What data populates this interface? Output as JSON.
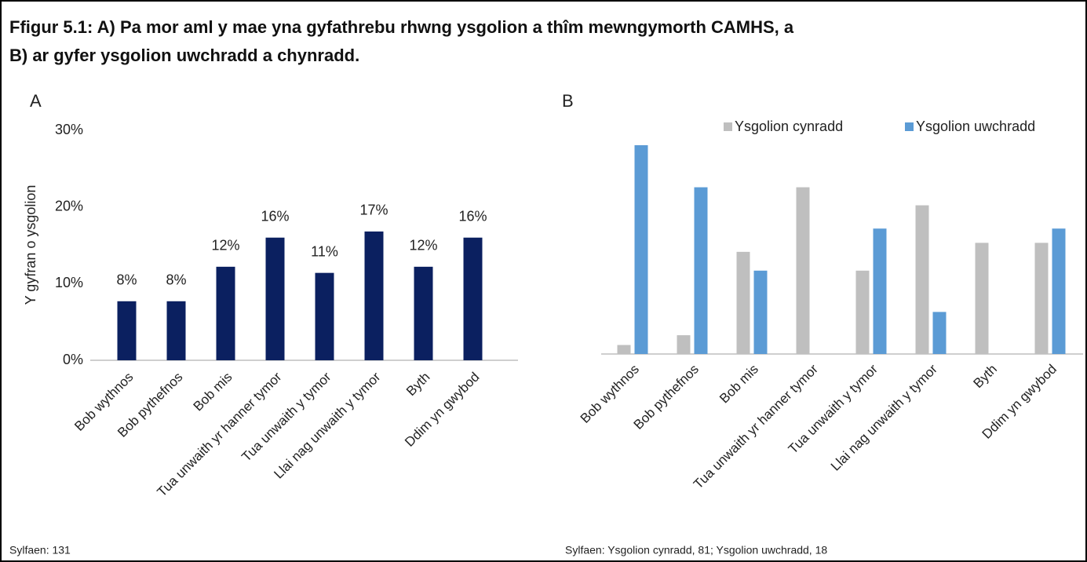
{
  "title": "Ffigur 5.1: A) Pa mor aml y mae yna gyfathrebu rhwng ysgolion a thîm mewngymorth CAMHS, a B) ar gyfer ysgolion uwchradd a chynradd.",
  "chart_data": [
    {
      "type": "bar",
      "panel": "A",
      "ylabel": "Y gyfran o ysgolion",
      "categories": [
        "Bob wythnos",
        "Bob pythefnos",
        "Bob mis",
        "Tua unwaith yr hanner tymor",
        "Tua unwaith y tymor",
        "Llai nag unwaith y tymor",
        "Byth",
        "Ddim yn gwybod"
      ],
      "values": [
        7.7,
        7.7,
        12.2,
        16,
        11.4,
        16.8,
        12.2,
        16
      ],
      "value_labels": [
        "8%",
        "8%",
        "12%",
        "16%",
        "11%",
        "17%",
        "12%",
        "16%"
      ],
      "color": "#0b2060",
      "ylim": [
        0,
        30
      ],
      "yticks": [
        {
          "value": 0,
          "label": "0%"
        },
        {
          "value": 10,
          "label": "10%"
        },
        {
          "value": 20,
          "label": "20%"
        },
        {
          "value": 30,
          "label": "30%"
        }
      ],
      "note": "Sylfaen: 131"
    },
    {
      "type": "grouped-bar",
      "panel": "B",
      "categories": [
        "Bob wythnos",
        "Bob pythefnos",
        "Bob mis",
        "Tua unwaith yr hanner tymor",
        "Tua unwaith y tymor",
        "Llai nag unwaith y tymor",
        "Byth",
        "Ddim yn gwybod"
      ],
      "series": [
        {
          "name": "Ysgolion cynradd",
          "color": "#bfbfbf",
          "values": [
            1.2,
            2.5,
            13.6,
            22.2,
            11.1,
            19.8,
            14.8,
            14.8
          ]
        },
        {
          "name": "Ysgolion uwchradd",
          "color": "#5b9bd5",
          "values": [
            27.8,
            22.2,
            11.1,
            0,
            16.7,
            5.6,
            0,
            16.7
          ]
        }
      ],
      "note": "Sylfaen: Ysgolion cynradd, 81; Ysgolion uwchradd, 18"
    }
  ]
}
